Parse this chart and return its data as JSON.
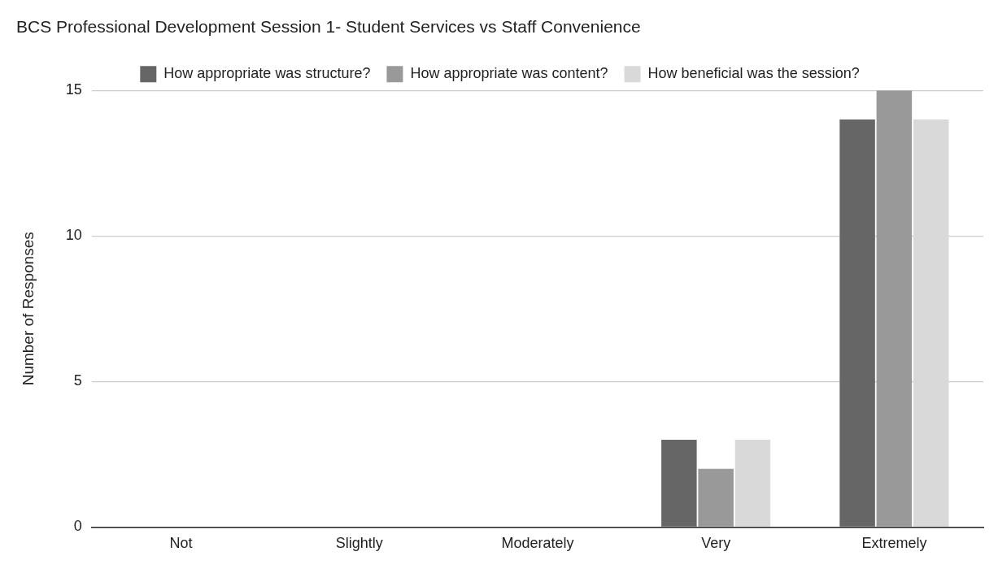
{
  "chart_data": {
    "type": "bar",
    "title": "BCS Professional Development Session 1- Student Services vs Staff Convenience",
    "ylabel": "Number of Responses",
    "categories": [
      "Not",
      "Slightly",
      "Moderately",
      "Very",
      "Extremely"
    ],
    "series": [
      {
        "name": "How appropriate was structure?",
        "color": "#666666",
        "values": [
          0,
          0,
          0,
          3,
          14
        ]
      },
      {
        "name": "How appropriate was content?",
        "color": "#999999",
        "values": [
          0,
          0,
          0,
          2,
          15
        ]
      },
      {
        "name": "How beneficial was the session?",
        "color": "#d9d9d9",
        "values": [
          0,
          0,
          0,
          3,
          14
        ]
      }
    ],
    "ylim": [
      0,
      15
    ],
    "yticks": [
      0,
      5,
      10,
      15
    ],
    "grid": "y",
    "legend": "top"
  }
}
